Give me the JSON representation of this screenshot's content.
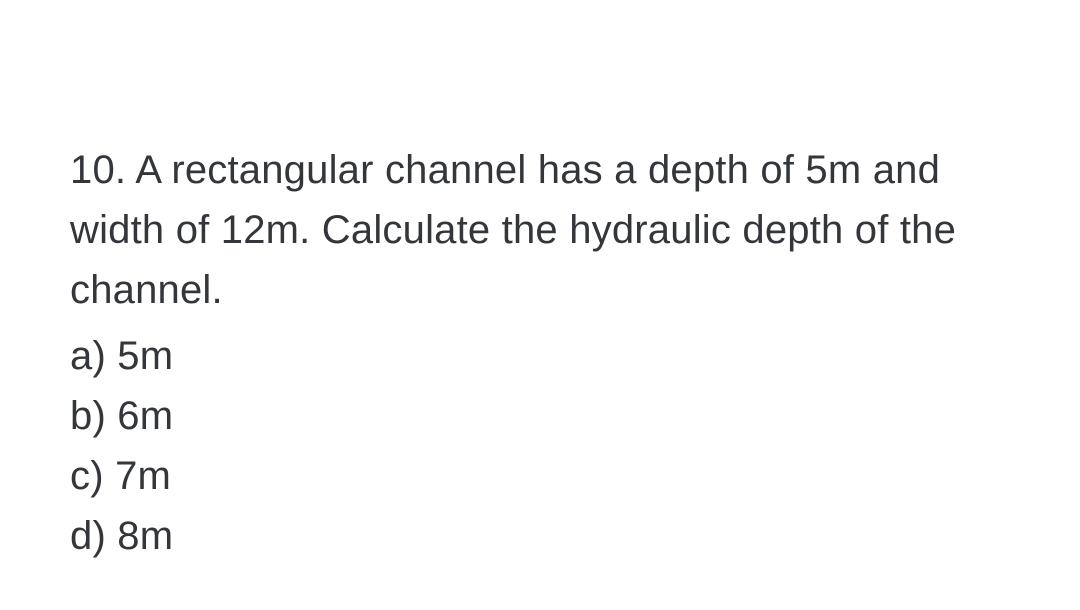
{
  "question": {
    "number": "10.",
    "text": "A rectangular channel has a depth of 5m and width of 12m. Calculate the hydraulic depth of the channel.",
    "font_size_pt": 30,
    "text_color": "#33363a",
    "background_color": "#ffffff"
  },
  "options": [
    {
      "label": "a)",
      "value": "5m"
    },
    {
      "label": "b)",
      "value": "6m"
    },
    {
      "label": "c)",
      "value": "7m"
    },
    {
      "label": "d)",
      "value": "8m"
    }
  ]
}
